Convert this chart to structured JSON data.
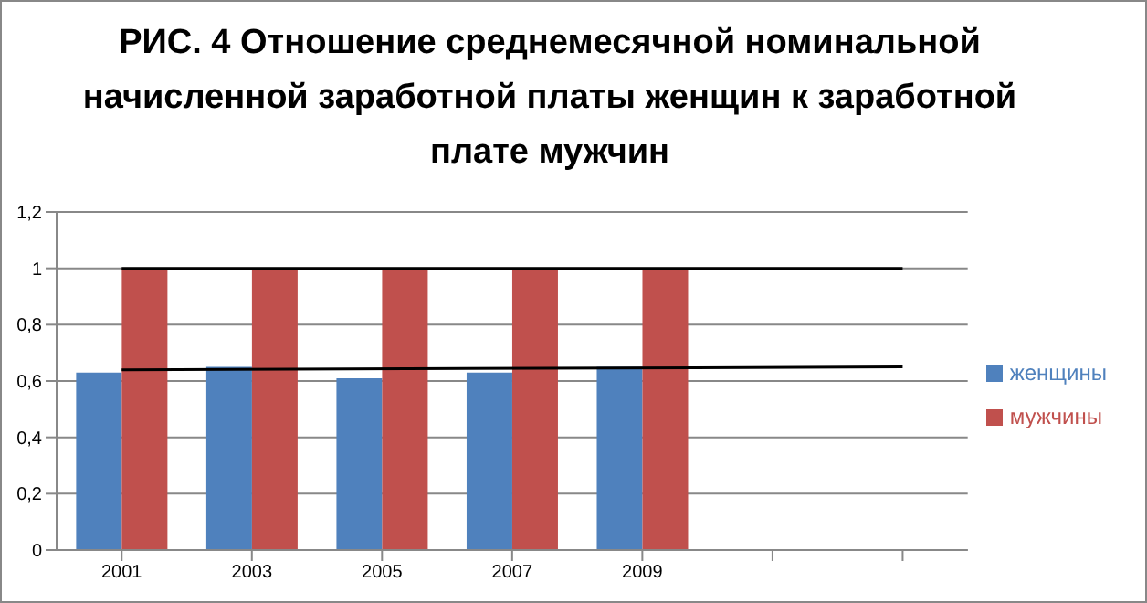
{
  "chart_data": {
    "type": "bar",
    "title": "РИС. 4 Отношение среднемесячной номинальной начисленной заработной платы женщин к заработной плате мужчин",
    "categories": [
      "2001",
      "2003",
      "2005",
      "2007",
      "2009",
      null,
      null
    ],
    "series": [
      {
        "name": "женщины",
        "color": "#4f81bd",
        "values": [
          0.63,
          0.65,
          0.61,
          0.63,
          0.65,
          null,
          null
        ]
      },
      {
        "name": "мужчины",
        "color": "#c0504d",
        "values": [
          1,
          1,
          1,
          1,
          1,
          null,
          null
        ]
      },
      {
        "type": "line",
        "color": "#000000",
        "values": [
          0.64,
          null,
          null,
          null,
          null,
          null,
          0.65
        ]
      },
      {
        "type": "line",
        "color": "#000000",
        "values": [
          1,
          null,
          null,
          null,
          null,
          null,
          1
        ]
      }
    ],
    "ylim": [
      0,
      1.2
    ],
    "yticks": [
      {
        "value": 0,
        "label": "0"
      },
      {
        "value": 0.2,
        "label": "0,2"
      },
      {
        "value": 0.4,
        "label": "0,4"
      },
      {
        "value": 0.6,
        "label": "0,6"
      },
      {
        "value": 0.8,
        "label": "0,8"
      },
      {
        "value": 1,
        "label": "1"
      },
      {
        "value": 1.2,
        "label": "1,2"
      }
    ],
    "grid": "y",
    "legend": "right"
  }
}
